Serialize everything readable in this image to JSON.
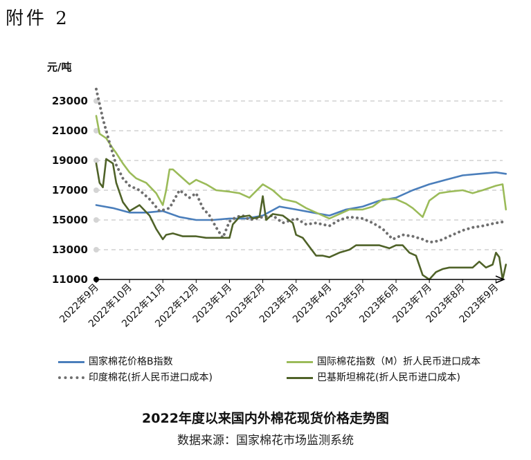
{
  "header": {
    "attachment": "附件 2"
  },
  "chart_data": {
    "type": "line",
    "ylabel": "元/吨",
    "ylim": [
      11000,
      23000
    ],
    "yticks": [
      11000,
      13000,
      15000,
      17000,
      19000,
      21000,
      23000
    ],
    "grid": "horizontal-dashed",
    "legend_position": "bottom",
    "categories": [
      "2022年9月",
      "2022年10月",
      "2022年11月",
      "2022年12月",
      "2023年1月",
      "2023年2月",
      "2023年3月",
      "2023年4月",
      "2023年5月",
      "2023年6月",
      "2023年7月",
      "2023年8月",
      "2023年9月"
    ],
    "series": [
      {
        "name": "国家棉花价格B指数",
        "color": "#4a7ebb",
        "style": "solid",
        "x": [
          0,
          0.5,
          1,
          1.5,
          2,
          2.5,
          3,
          3.5,
          4,
          4.5,
          5,
          5.5,
          6,
          6.5,
          7,
          7.5,
          8,
          8.5,
          9,
          9.5,
          10,
          10.5,
          11,
          11.5,
          12,
          12.3
        ],
        "y": [
          16000,
          15800,
          15500,
          15500,
          15600,
          15200,
          15000,
          15000,
          15100,
          15100,
          15300,
          15900,
          15700,
          15500,
          15300,
          15700,
          15900,
          16300,
          16500,
          17000,
          17400,
          17700,
          18000,
          18100,
          18200,
          18100
        ]
      },
      {
        "name": "国际棉花指数（M）折人民币进口成本",
        "color": "#9bbb59",
        "style": "solid",
        "x": [
          0,
          0.1,
          0.3,
          0.5,
          0.6,
          0.8,
          1,
          1.2,
          1.5,
          1.8,
          2,
          2.1,
          2.2,
          2.3,
          2.5,
          2.8,
          3,
          3.3,
          3.6,
          4,
          4.3,
          4.6,
          5,
          5.3,
          5.6,
          6,
          6.3,
          6.6,
          7,
          7.3,
          7.6,
          8,
          8.3,
          8.6,
          9,
          9.3,
          9.5,
          9.8,
          10,
          10.3,
          10.6,
          11,
          11.3,
          11.6,
          12,
          12.2,
          12.3
        ],
        "y": [
          22000,
          20800,
          20500,
          19800,
          19500,
          18800,
          18200,
          17800,
          17500,
          16800,
          16000,
          17000,
          18400,
          18400,
          18000,
          17400,
          17700,
          17400,
          17000,
          16900,
          16800,
          16500,
          17400,
          17000,
          16400,
          16200,
          15800,
          15500,
          15100,
          15400,
          15700,
          15700,
          15900,
          16400,
          16400,
          16100,
          15800,
          15200,
          16300,
          16800,
          16900,
          17000,
          16800,
          17000,
          17300,
          17400,
          15700
        ]
      },
      {
        "name": "印度棉花(折人民币进口成本)",
        "color": "#6f6f6f",
        "style": "dotted",
        "x": [
          0,
          0.2,
          0.4,
          0.6,
          0.8,
          1,
          1.3,
          1.6,
          1.9,
          2.2,
          2.5,
          2.8,
          3,
          3.2,
          3.4,
          3.6,
          3.8,
          4,
          4.2,
          4.4,
          4.6,
          5,
          5.3,
          5.6,
          6,
          6.3,
          6.6,
          7,
          7.3,
          7.6,
          8,
          8.3,
          8.6,
          8.9,
          9.2,
          9.5,
          9.8,
          10,
          10.3,
          10.6,
          11,
          11.3,
          11.6,
          12,
          12.3
        ],
        "y": [
          23800,
          21800,
          20200,
          18700,
          17800,
          17300,
          17000,
          16400,
          15600,
          15800,
          17000,
          16500,
          16800,
          15800,
          15300,
          14500,
          13800,
          14900,
          15200,
          15300,
          15000,
          15200,
          15300,
          14800,
          15100,
          14700,
          14800,
          14600,
          15000,
          15200,
          15100,
          14800,
          14400,
          13700,
          14000,
          13900,
          13700,
          13500,
          13600,
          13900,
          14300,
          14500,
          14600,
          14800,
          14900
        ]
      },
      {
        "name": "巴基斯坦棉花(折人民币进口成本)",
        "color": "#4f6228",
        "style": "solid",
        "x": [
          0,
          0.1,
          0.2,
          0.3,
          0.5,
          0.6,
          0.8,
          1,
          1.3,
          1.6,
          1.8,
          2,
          2.1,
          2.3,
          2.6,
          3,
          3.3,
          3.6,
          3.8,
          4,
          4.1,
          4.3,
          4.6,
          4.7,
          4.9,
          5,
          5.1,
          5.3,
          5.6,
          5.9,
          6,
          6.2,
          6.4,
          6.6,
          6.8,
          7,
          7.3,
          7.6,
          7.8,
          8,
          8.2,
          8.5,
          8.8,
          9,
          9.2,
          9.4,
          9.6,
          9.8,
          10,
          10.2,
          10.4,
          10.6,
          11,
          11.3,
          11.5,
          11.7,
          11.9,
          12,
          12.1,
          12.2,
          12.3
        ],
        "y": [
          18800,
          17500,
          17200,
          19100,
          18800,
          17500,
          16200,
          15600,
          16000,
          15300,
          14400,
          13700,
          14000,
          14100,
          13900,
          13900,
          13800,
          13800,
          13800,
          13800,
          14700,
          15200,
          15300,
          15100,
          15200,
          16600,
          15000,
          15400,
          15300,
          14800,
          14000,
          13800,
          13200,
          12600,
          12600,
          12500,
          12800,
          13000,
          13300,
          13300,
          13300,
          13300,
          13100,
          13300,
          13300,
          12800,
          12600,
          11300,
          11000,
          11500,
          11700,
          11800,
          11800,
          11800,
          12200,
          11800,
          12000,
          12800,
          12500,
          11000,
          12000
        ]
      }
    ]
  },
  "figure": {
    "title": "2022年度以来国内外棉花现货价格走势图",
    "source": "数据来源：国家棉花市场监测系统"
  }
}
